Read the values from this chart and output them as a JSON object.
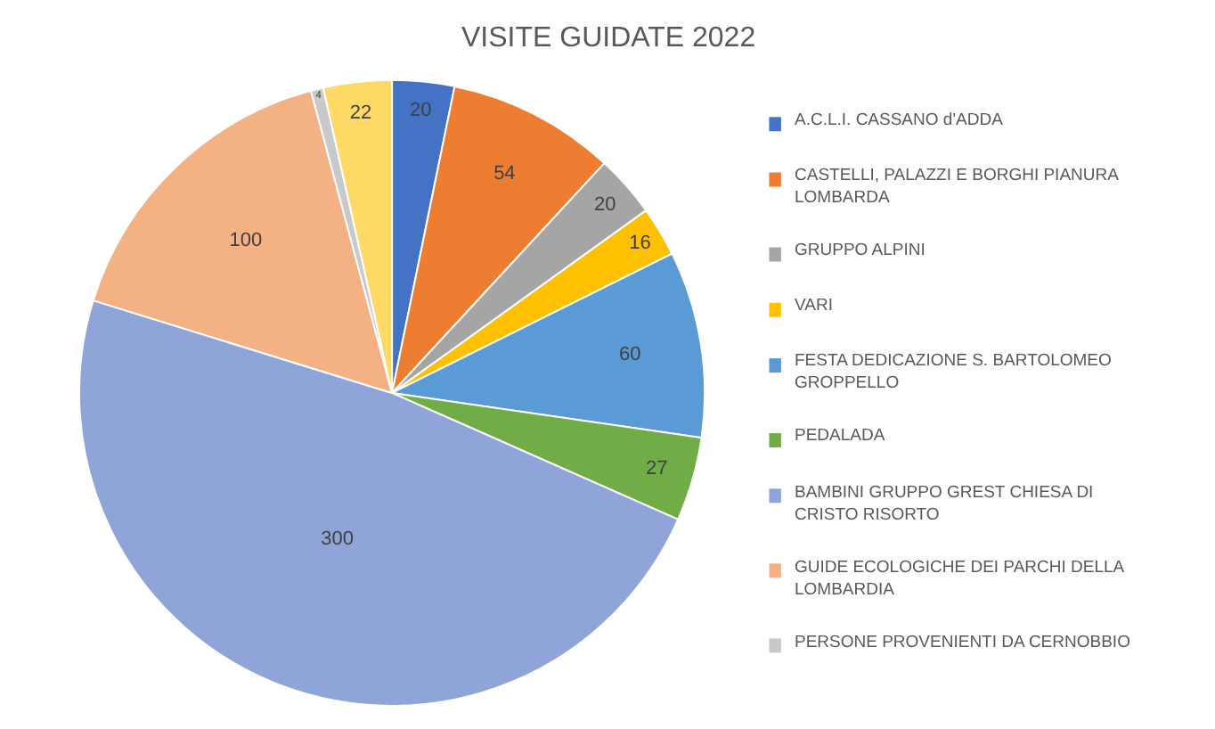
{
  "chart_data": {
    "type": "pie",
    "title": "VISITE GUIDATE 2022",
    "categories": [
      "A.C.L.I. CASSANO d'ADDA",
      "CASTELLI, PALAZZI E BORGHI PIANURA LOMBARDA",
      "GRUPPO ALPINI",
      "VARI",
      "FESTA DEDICAZIONE S. BARTOLOMEO GROPPELLO",
      "PEDALADA",
      "BAMBINI GRUPPO GREST CHIESA DI CRISTO RISORTO",
      "GUIDE ECOLOGICHE DEI PARCHI DELLA LOMBARDIA",
      "PERSONE PROVENIENTI DA CERNOBBIO",
      null
    ],
    "values": [
      20,
      54,
      20,
      16,
      60,
      27,
      300,
      100,
      4,
      22
    ],
    "colors": [
      "#4472c4",
      "#ed7d31",
      "#a5a5a5",
      "#ffc000",
      "#5b9bd5",
      "#70ad47",
      "#8fa4d8",
      "#f4b183",
      "#c9c9c9",
      "#ffd966"
    ],
    "data_labels": true,
    "legend": "right"
  }
}
